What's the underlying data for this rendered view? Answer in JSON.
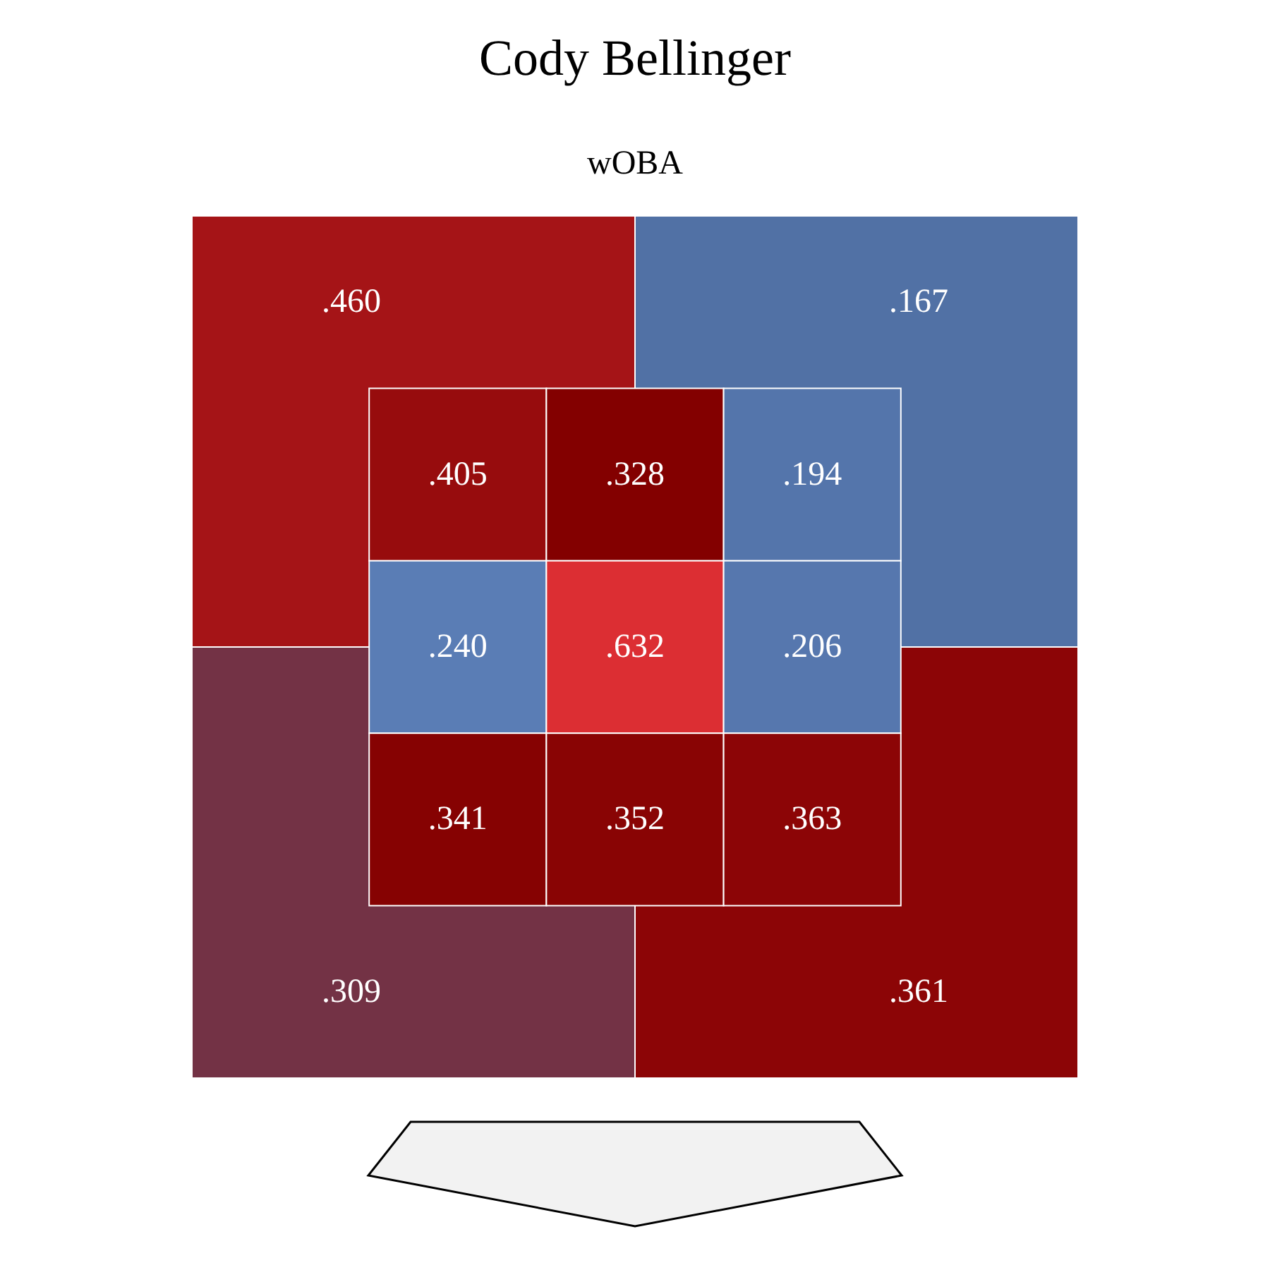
{
  "chart_data": [
    {
      "type": "heatmap",
      "title": "Cody Bellinger",
      "subtitle": "wOBA",
      "categories": [
        null,
        null
      ],
      "y_categories": [
        null,
        null
      ],
      "cells": [
        [
          0.46,
          0.167
        ],
        [
          0.309,
          0.361
        ]
      ],
      "cell_labels": [
        [
          ".460",
          ".167"
        ],
        [
          ".309",
          ".361"
        ]
      ]
    },
    {
      "type": "heatmap",
      "categories": [
        null,
        null,
        null
      ],
      "y_categories": [
        null,
        null,
        null
      ],
      "cells": [
        [
          0.405,
          0.328,
          0.194
        ],
        [
          0.24,
          0.632,
          0.206
        ],
        [
          0.341,
          0.352,
          0.363
        ]
      ],
      "cell_labels": [
        [
          ".405",
          ".328",
          ".194"
        ],
        [
          ".240",
          ".632",
          ".206"
        ],
        [
          ".341",
          ".352",
          ".363"
        ]
      ]
    }
  ]
}
